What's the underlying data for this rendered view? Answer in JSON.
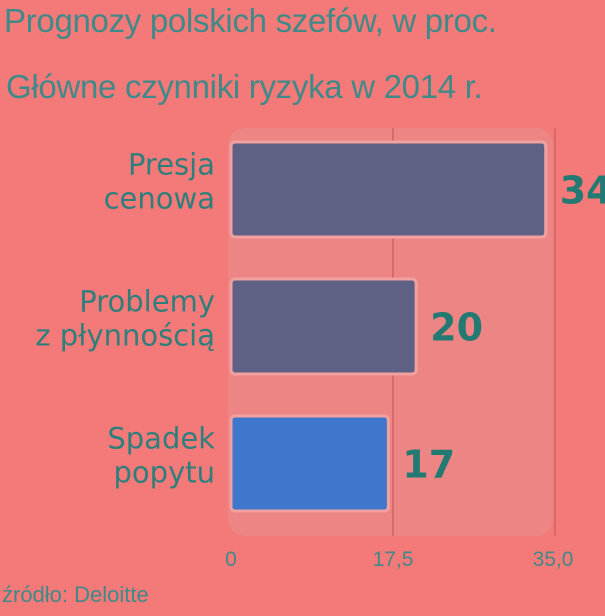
{
  "title": "Prognozy polskich szefów, w proc.",
  "chart_data": {
    "type": "bar",
    "orientation": "horizontal",
    "title": "Główne czynniki ryzyka w 2014 r.",
    "categories": [
      [
        "Presja",
        "cenowa"
      ],
      [
        "Problemy",
        "z płynnością"
      ],
      [
        "Spadek",
        "popytu"
      ]
    ],
    "values": [
      34,
      20,
      17
    ],
    "value_labels": [
      "34",
      "20",
      "17"
    ],
    "bar_colors": [
      "#5e6183",
      "#5e6183",
      "#3f77cc"
    ],
    "xlim": [
      0,
      35
    ],
    "ticks": [
      "0",
      "17,5",
      "35,0"
    ],
    "tick_values": [
      0,
      17.5,
      35
    ],
    "grid": true
  },
  "source": "źródło: Deloitte"
}
